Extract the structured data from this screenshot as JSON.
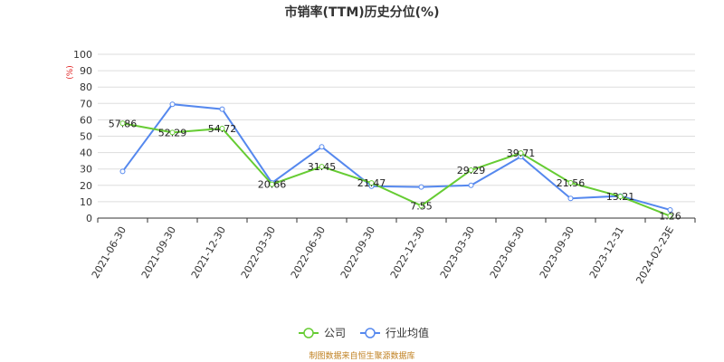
{
  "chart_data": {
    "type": "line",
    "title": "市销率(TTM)历史分位(%)",
    "unit_label": "(%)",
    "ylim": [
      0,
      100
    ],
    "yticks": [
      0,
      10,
      20,
      30,
      40,
      50,
      60,
      70,
      80,
      90,
      100
    ],
    "grid": true,
    "legend_position": "bottom",
    "categories": [
      "2021-06-30",
      "2021-09-30",
      "2021-12-30",
      "2022-03-30",
      "2022-06-30",
      "2022-09-30",
      "2022-12-30",
      "2023-03-30",
      "2023-06-30",
      "2023-09-30",
      "2023-12-31",
      "2024-02-23E"
    ],
    "series": [
      {
        "name": "公司",
        "color": "#66cc33",
        "show_labels": true,
        "values": [
          57.86,
          52.29,
          54.72,
          20.66,
          31.45,
          21.47,
          7.55,
          29.29,
          39.71,
          21.56,
          13.21,
          1.26
        ]
      },
      {
        "name": "行业均值",
        "color": "#5588ee",
        "show_labels": false,
        "values": [
          28.5,
          69.5,
          66.5,
          21.5,
          43.5,
          19.5,
          19.0,
          20.0,
          37.5,
          12.0,
          13.5,
          5.0
        ]
      }
    ],
    "source": "制图数据来自恒生聚源数据库"
  }
}
